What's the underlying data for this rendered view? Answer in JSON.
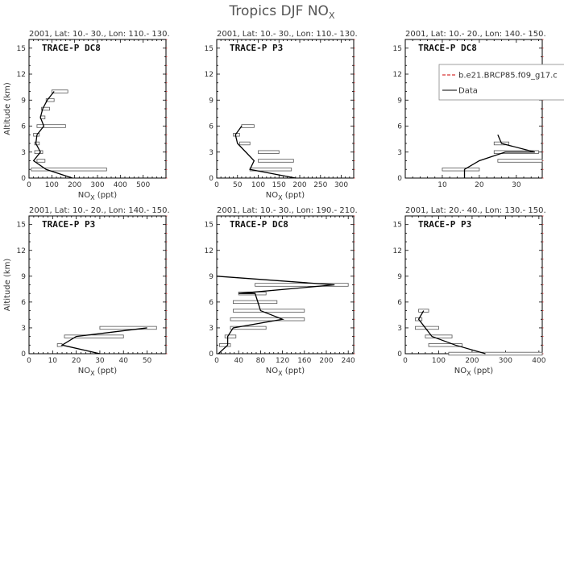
{
  "figure": {
    "title": "Tropics DJF NO",
    "title_sub": "X"
  },
  "chart_data": [
    {
      "type": "line",
      "subtitle": "2001, Lat: 10.- 30., Lon: 110.- 130.",
      "label": "TRACE-P DC8",
      "xlabel": "NO",
      "xlabel_sub": "X",
      "xlabel_unit": " (ppt)",
      "ylabel": "Altitude (km)",
      "xlim": [
        0,
        600
      ],
      "ylim": [
        0,
        16
      ],
      "xticks": [
        0,
        100,
        200,
        300,
        400,
        500
      ],
      "yticks": [
        0,
        3,
        6,
        9,
        12,
        15
      ],
      "data_line": [
        [
          190,
          0
        ],
        [
          75,
          1
        ],
        [
          20,
          2
        ],
        [
          50,
          3
        ],
        [
          30,
          4
        ],
        [
          35,
          5
        ],
        [
          65,
          6
        ],
        [
          50,
          7
        ],
        [
          60,
          8
        ],
        [
          80,
          9
        ],
        [
          110,
          10
        ]
      ],
      "ranges": [
        [
          10,
          340,
          1
        ],
        [
          35,
          70,
          2
        ],
        [
          25,
          60,
          3
        ],
        [
          25,
          45,
          4
        ],
        [
          20,
          45,
          5
        ],
        [
          35,
          160,
          6
        ],
        [
          50,
          70,
          7
        ],
        [
          55,
          90,
          8
        ],
        [
          75,
          110,
          9
        ],
        [
          100,
          170,
          10
        ]
      ]
    },
    {
      "type": "line",
      "subtitle": "2001, Lat: 10.- 30., Lon: 110.- 130.",
      "label": "TRACE-P P3",
      "xlabel": "NO",
      "xlabel_sub": "X",
      "xlabel_unit": " (ppt)",
      "ylabel": "",
      "xlim": [
        0,
        330
      ],
      "ylim": [
        0,
        16
      ],
      "xticks": [
        0,
        50,
        100,
        150,
        200,
        250,
        300
      ],
      "yticks": [
        0,
        3,
        6,
        9,
        12,
        15
      ],
      "data_line": [
        [
          190,
          0
        ],
        [
          80,
          1
        ],
        [
          90,
          2
        ],
        [
          70,
          3
        ],
        [
          50,
          4
        ],
        [
          45,
          5
        ],
        [
          60,
          6
        ]
      ],
      "ranges": [
        [
          80,
          180,
          1
        ],
        [
          100,
          185,
          2
        ],
        [
          100,
          150,
          3
        ],
        [
          55,
          80,
          4
        ],
        [
          40,
          55,
          5
        ],
        [
          60,
          90,
          6
        ]
      ]
    },
    {
      "type": "line",
      "subtitle": "2001, Lat: 10.- 20., Lon: 140.- 150.",
      "label": "TRACE-P DC8",
      "xlabel": "",
      "xlabel_sub": "",
      "xlabel_unit": "",
      "ylabel": "",
      "xlim": [
        0,
        37
      ],
      "ylim": [
        0,
        16
      ],
      "xticks": [
        10,
        20,
        30
      ],
      "yticks": [
        0,
        3,
        6,
        9,
        12,
        15
      ],
      "data_line": [
        [
          16,
          0
        ],
        [
          16,
          1
        ],
        [
          20,
          2
        ],
        [
          27,
          3
        ],
        [
          35,
          3
        ],
        [
          26,
          4
        ],
        [
          25,
          5
        ]
      ],
      "ranges": [
        [
          10,
          20,
          1
        ],
        [
          25,
          37,
          2
        ],
        [
          24,
          36,
          3
        ],
        [
          24,
          28,
          4
        ]
      ],
      "legend": [
        {
          "name": "b.e21.BRCP85.f09_g17.c",
          "color": "#cc0000",
          "dash": "4,2"
        },
        {
          "name": "Data",
          "color": "#000000",
          "dash": ""
        }
      ]
    },
    {
      "type": "line",
      "subtitle": "2001, Lat: 10.- 20., Lon: 140.- 150.",
      "label": "TRACE-P P3",
      "xlabel": "NO",
      "xlabel_sub": "X",
      "xlabel_unit": " (ppt)",
      "ylabel": "Altitude (km)",
      "xlim": [
        0,
        58
      ],
      "ylim": [
        0,
        16
      ],
      "xticks": [
        0,
        10,
        20,
        30,
        40,
        50
      ],
      "yticks": [
        0,
        3,
        6,
        9,
        12,
        15
      ],
      "data_line": [
        [
          30,
          0
        ],
        [
          14,
          1
        ],
        [
          20,
          2
        ],
        [
          50,
          3
        ]
      ],
      "ranges": [
        [
          12,
          14,
          1
        ],
        [
          15,
          40,
          2
        ],
        [
          30,
          54,
          3
        ]
      ]
    },
    {
      "type": "line",
      "subtitle": "2001, Lat: 10.- 30., Lon: 190.- 210.",
      "label": "TRACE-P DC8",
      "xlabel": "NO",
      "xlabel_sub": "X",
      "xlabel_unit": " (ppt)",
      "ylabel": "",
      "xlim": [
        0,
        250
      ],
      "ylim": [
        0,
        16
      ],
      "xticks": [
        0,
        40,
        80,
        120,
        160,
        200,
        240
      ],
      "yticks": [
        0,
        3,
        6,
        9,
        12,
        15
      ],
      "data_line": [
        [
          3,
          0
        ],
        [
          20,
          1
        ],
        [
          20,
          2
        ],
        [
          30,
          3
        ],
        [
          120,
          4
        ],
        [
          80,
          5
        ],
        [
          75,
          6
        ],
        [
          70,
          7
        ],
        [
          40,
          7
        ],
        [
          215,
          8
        ],
        [
          0,
          9
        ]
      ],
      "ranges": [
        [
          5,
          25,
          1
        ],
        [
          15,
          35,
          2
        ],
        [
          25,
          90,
          3
        ],
        [
          25,
          160,
          4
        ],
        [
          30,
          160,
          5
        ],
        [
          30,
          110,
          6
        ],
        [
          40,
          90,
          7
        ],
        [
          70,
          240,
          8
        ]
      ]
    },
    {
      "type": "line",
      "subtitle": "2001, Lat: 20.- 40., Lon: 130.- 150.",
      "label": "TRACE-P P3",
      "xlabel": "NO",
      "xlabel_sub": "X",
      "xlabel_unit": " (ppt)",
      "ylabel": "",
      "xlim": [
        0,
        410
      ],
      "ylim": [
        0,
        16
      ],
      "xticks": [
        0,
        100,
        200,
        300,
        400
      ],
      "yticks": [
        0,
        3,
        6,
        9,
        12,
        15
      ],
      "data_line": [
        [
          240,
          0
        ],
        [
          150,
          1
        ],
        [
          80,
          2
        ],
        [
          60,
          3
        ],
        [
          40,
          4
        ],
        [
          55,
          5
        ]
      ],
      "ranges": [
        [
          130,
          410,
          0
        ],
        [
          70,
          170,
          1
        ],
        [
          60,
          140,
          2
        ],
        [
          30,
          100,
          3
        ],
        [
          30,
          50,
          4
        ],
        [
          40,
          70,
          5
        ]
      ]
    }
  ]
}
